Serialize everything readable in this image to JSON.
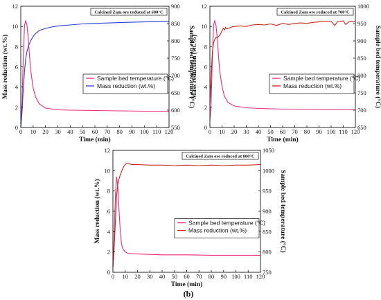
{
  "figure_label": "(b)",
  "colors": {
    "pink": "#ee2a7b",
    "blue": "#2a3fd6",
    "red": "#c8241c",
    "axis": "#111111"
  },
  "chart_data": [
    {
      "type": "line",
      "annotation": "Calcined Zam ore reduced at 600°C",
      "xlabel": "Time (min)",
      "ylabel": "Mass reduction (wt.%)",
      "y2label": "Sample bed temperature (°C)",
      "xlim": [
        0,
        120
      ],
      "ylim": [
        0,
        12
      ],
      "y2lim": [
        550,
        900
      ],
      "xticks": [
        "0",
        "10",
        "20",
        "30",
        "40",
        "50",
        "60",
        "70",
        "80",
        "90",
        "100",
        "110",
        "120"
      ],
      "yticks": [
        "0",
        "2",
        "4",
        "6",
        "8",
        "10",
        "12"
      ],
      "y2ticks": [
        "550",
        "600",
        "650",
        "700",
        "750",
        "800",
        "850",
        "900"
      ],
      "legend_position": "middle-right",
      "series": [
        {
          "name": "Sample bed temperature (°C)",
          "axis": "right",
          "color": "#ee2a7b",
          "x": [
            0,
            1,
            2,
            3,
            4,
            5,
            6,
            7,
            8,
            10,
            12,
            15,
            20,
            30,
            40,
            60,
            80,
            100,
            120
          ],
          "y": [
            575,
            620,
            750,
            845,
            858,
            845,
            810,
            760,
            715,
            665,
            638,
            618,
            606,
            601,
            600,
            599,
            598,
            597,
            597
          ]
        },
        {
          "name": "Mass reduction (wt.%)",
          "axis": "left",
          "color": "#2a3fd6",
          "x": [
            0,
            1,
            2,
            3,
            4,
            5,
            6,
            8,
            10,
            12,
            15,
            20,
            25,
            30,
            40,
            50,
            60,
            80,
            100,
            120
          ],
          "y": [
            0,
            1.5,
            3.8,
            5.6,
            6.8,
            7.5,
            8.0,
            8.6,
            9.0,
            9.3,
            9.6,
            9.8,
            9.95,
            10.05,
            10.15,
            10.25,
            10.3,
            10.38,
            10.45,
            10.5
          ]
        }
      ]
    },
    {
      "type": "line",
      "annotation": "Calcined Zam ore reduced at 700°C",
      "xlabel": "Time (min)",
      "ylabel": "Mass reduction (wt.%)",
      "y2label": "Sample bed temperature (°C)",
      "xlim": [
        0,
        120
      ],
      "ylim": [
        0,
        12
      ],
      "y2lim": [
        650,
        1000
      ],
      "xticks": [
        "0",
        "10",
        "20",
        "30",
        "40",
        "50",
        "60",
        "70",
        "80",
        "90",
        "100",
        "110",
        "120"
      ],
      "yticks": [
        "0",
        "2",
        "4",
        "6",
        "8",
        "10",
        "12"
      ],
      "y2ticks": [
        "650",
        "700",
        "750",
        "800",
        "850",
        "900",
        "950",
        "1000"
      ],
      "legend_position": "middle-right",
      "series": [
        {
          "name": "Sample bed temperature (°C)",
          "axis": "right",
          "color": "#ee2a7b",
          "x": [
            0,
            1,
            2,
            3,
            4,
            5,
            6,
            7,
            8,
            10,
            12,
            15,
            20,
            30,
            40,
            60,
            80,
            100,
            120
          ],
          "y": [
            670,
            720,
            850,
            945,
            958,
            945,
            910,
            860,
            815,
            768,
            740,
            722,
            712,
            707,
            705,
            703,
            702,
            701,
            701
          ]
        },
        {
          "name": "Mass reduction (wt.%)",
          "axis": "left",
          "color": "#c8241c",
          "x": [
            0,
            1,
            2,
            3,
            4,
            5,
            6,
            7,
            8,
            9,
            10,
            11,
            12,
            13,
            14,
            15,
            18,
            20,
            25,
            30,
            35,
            40,
            45,
            50,
            55,
            60,
            65,
            70,
            75,
            80,
            85,
            90,
            95,
            100,
            103,
            105,
            108,
            110,
            112,
            115,
            118,
            120
          ],
          "y": [
            2.4,
            5.2,
            7.4,
            8.4,
            8.7,
            8.9,
            8.9,
            9.0,
            9.1,
            9.3,
            9.6,
            9.8,
            9.65,
            9.9,
            9.75,
            9.8,
            9.95,
            10.0,
            10.05,
            10.0,
            10.15,
            10.2,
            10.15,
            10.25,
            10.1,
            10.3,
            10.2,
            10.3,
            10.35,
            10.3,
            10.4,
            10.45,
            10.5,
            10.5,
            10.1,
            10.45,
            10.5,
            10.55,
            10.2,
            10.5,
            10.45,
            10.5
          ]
        }
      ]
    },
    {
      "type": "line",
      "annotation": "Calcined Zam ore reduced at 800°C",
      "xlabel": "Time (min)",
      "ylabel": "Mass reduction (wt.%)",
      "y2label": "Sample bed temperature (°C)",
      "xlim": [
        0,
        120
      ],
      "ylim": [
        0,
        12
      ],
      "y2lim": [
        750,
        1050
      ],
      "xticks": [
        "0",
        "10",
        "20",
        "30",
        "40",
        "50",
        "60",
        "70",
        "80",
        "90",
        "100",
        "110",
        "120"
      ],
      "yticks": [
        "0",
        "2",
        "4",
        "6",
        "8",
        "10",
        "12"
      ],
      "y2ticks": [
        "750",
        "800",
        "850",
        "900",
        "950",
        "1000",
        "1050"
      ],
      "legend_position": "middle-right",
      "series": [
        {
          "name": "Sample bed temperature (°C)",
          "axis": "right",
          "color": "#ee2a7b",
          "x": [
            0,
            1,
            2,
            3,
            4,
            5,
            6,
            7,
            8,
            10,
            12,
            15,
            20,
            30,
            40,
            60,
            80,
            100,
            120
          ],
          "y": [
            760,
            840,
            940,
            985,
            960,
            900,
            850,
            820,
            808,
            800,
            797,
            796,
            795,
            794,
            793,
            793,
            792,
            792,
            792
          ]
        },
        {
          "name": "Mass reduction (wt.%)",
          "axis": "left",
          "color": "#c8241c",
          "x": [
            0,
            1,
            2,
            3,
            4,
            5,
            6,
            7,
            8,
            9,
            10,
            11,
            12,
            13,
            14,
            15,
            20,
            30,
            40,
            50,
            60,
            70,
            80,
            90,
            100,
            110,
            120
          ],
          "y": [
            0.5,
            2.5,
            5.0,
            7.5,
            8.7,
            9.2,
            9.6,
            9.9,
            10.2,
            10.45,
            10.6,
            10.7,
            10.75,
            10.7,
            10.65,
            10.6,
            10.6,
            10.55,
            10.55,
            10.5,
            10.55,
            10.5,
            10.55,
            10.5,
            10.55,
            10.55,
            10.6
          ]
        }
      ]
    }
  ]
}
